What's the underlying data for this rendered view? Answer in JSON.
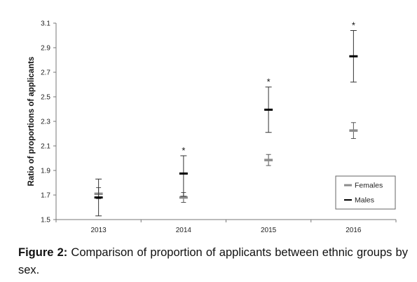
{
  "chart_data": {
    "type": "scatter",
    "ylabel": "Ratio of proportions of applicants",
    "ylim": [
      1.5,
      3.1
    ],
    "yticks": [
      "1.5",
      "1.7",
      "1.9",
      "2.1",
      "2.3",
      "2.5",
      "2.7",
      "2.9",
      "3.1"
    ],
    "categories": [
      "2013",
      "2014",
      "2015",
      "2016"
    ],
    "grid": false,
    "legend_position": "bottom-right",
    "series": [
      {
        "name": "Females",
        "color": "#8c8c8c",
        "values": [
          1.71,
          1.68,
          1.985,
          2.225
        ],
        "err_low": [
          1.67,
          1.64,
          1.94,
          2.16
        ],
        "err_high": [
          1.76,
          1.72,
          2.03,
          2.29
        ]
      },
      {
        "name": "Males",
        "color": "#000000",
        "values": [
          1.68,
          1.875,
          2.395,
          2.83
        ],
        "err_low": [
          1.53,
          1.69,
          2.21,
          2.62
        ],
        "err_high": [
          1.83,
          2.02,
          2.58,
          3.04
        ]
      }
    ],
    "annotations": [
      {
        "category": "2014",
        "text": "*"
      },
      {
        "category": "2015",
        "text": "*"
      },
      {
        "category": "2016",
        "text": "*"
      }
    ]
  },
  "caption": {
    "label": "Figure 2:",
    "text": " Comparison of proportion of applicants between ethnic groups by sex."
  }
}
